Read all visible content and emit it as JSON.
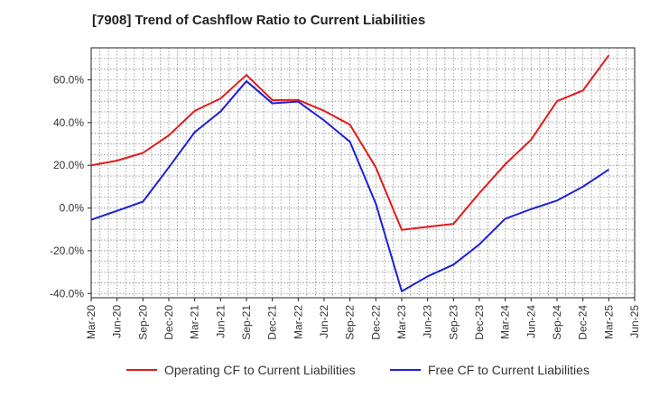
{
  "chart_data": {
    "type": "line",
    "title": "[7908]  Trend of Cashflow Ratio to Current Liabilities",
    "xlabel": "",
    "ylabel": "",
    "categories": [
      "Mar-20",
      "Jun-20",
      "Sep-20",
      "Dec-20",
      "Mar-21",
      "Jun-21",
      "Sep-21",
      "Dec-21",
      "Mar-22",
      "Jun-22",
      "Sep-22",
      "Dec-22",
      "Mar-23",
      "Jun-23",
      "Sep-23",
      "Dec-23",
      "Mar-24",
      "Jun-24",
      "Sep-24",
      "Dec-24",
      "Mar-25",
      "Jun-25"
    ],
    "ylim": [
      -42,
      75
    ],
    "yticks": [
      -40,
      -20,
      0,
      20,
      40,
      60
    ],
    "ytick_labels": [
      "-40.0%",
      "-20.0%",
      "0.0%",
      "20.0%",
      "40.0%",
      "60.0%"
    ],
    "grid": true,
    "legend_position": "bottom",
    "series": [
      {
        "name": "Operating CF to Current Liabilities",
        "color": "#e31a1c",
        "values": [
          20.0,
          22.2,
          25.8,
          34.0,
          45.5,
          51.3,
          62.3,
          50.5,
          50.6,
          45.5,
          39.0,
          19.0,
          -10.2,
          -8.8,
          -7.4,
          7.0,
          20.5,
          32.0,
          50.0,
          55.0,
          71.5,
          null
        ]
      },
      {
        "name": "Free CF to Current Liabilities",
        "color": "#1f1fd6",
        "values": [
          -5.5,
          -1.3,
          3.0,
          19.0,
          35.5,
          45.2,
          59.4,
          49.0,
          49.8,
          41.0,
          31.0,
          2.0,
          -39.0,
          -32.0,
          -26.5,
          -17.0,
          -5.0,
          -0.5,
          3.5,
          10.0,
          18.0,
          null
        ]
      }
    ]
  }
}
